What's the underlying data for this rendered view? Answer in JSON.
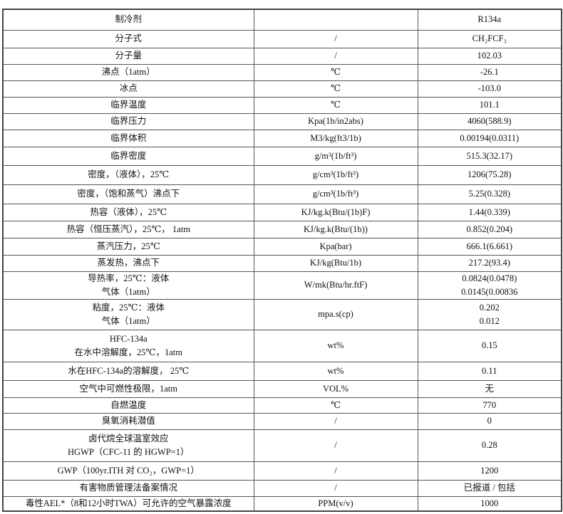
{
  "rows": [
    {
      "property": "制冷剂",
      "unit": "",
      "value": "R134a"
    },
    {
      "property": "分子式",
      "unit": "/",
      "value": "CH₂FCF₃"
    },
    {
      "property": "分子量",
      "unit": "/",
      "value": "102.03"
    },
    {
      "property": "沸点（1atm）",
      "unit": "℃",
      "value": "-26.1"
    },
    {
      "property": "冰点",
      "unit": "℃",
      "value": "-103.0"
    },
    {
      "property": "临界温度",
      "unit": "℃",
      "value": "101.1"
    },
    {
      "property": "临界压力",
      "unit": "Kpa(1b/in2abs)",
      "value": "4060(588.9)"
    },
    {
      "property": "临界体积",
      "unit": "M3/kg(ft3/1b)",
      "value": "0.00194(0.0311)"
    },
    {
      "property": "临界密度",
      "unit": "g/m³(1b/ft³)",
      "value": "515.3(32.17)"
    },
    {
      "property": "密度，（液体），25℃",
      "unit": "g/cm³(1b/ft³)",
      "value": "1206(75.28)"
    },
    {
      "property": "密度，（饱和蒸气）沸点下",
      "unit": "g/cm³(1b/ft³)",
      "value": "5.25(0.328)"
    },
    {
      "property": "热容（液体），25℃",
      "unit": "KJ/kg.k(Btu/(1b)F)",
      "value": "1.44(0.339)"
    },
    {
      "property": "热容（恒压蒸汽），25℃， 1atm",
      "unit": "KJ/kg.k(Btu/(1b))",
      "value": "0.852(0.204)"
    },
    {
      "property": "蒸汽压力，25℃",
      "unit": "Kpa(bar)",
      "value": "666.1(6.661)"
    },
    {
      "property": "蒸发热，沸点下",
      "unit": "KJ/kg(Btu/1b)",
      "value": "217.2(93.4)"
    },
    {
      "property": "导热率，25℃：液体\n气体（1atm）",
      "unit": "W/mk(Btu/hr.ftF)",
      "value": "0.0824(0.0478)\n0.0145(0.00836"
    },
    {
      "property": "粘度，25℃：液体\n气体（1atm）",
      "unit": "mpa.s(cp)",
      "value": "0.202\n0.012"
    },
    {
      "property": "HFC-134a\n在水中溶解度，25℃，1atm",
      "unit": "wt%",
      "value": "0.15"
    },
    {
      "property": "水在HFC-134a的溶解度， 25℃",
      "unit": "wt%",
      "value": "0.11"
    },
    {
      "property": "空气中可燃性极限，1atm",
      "unit": "VOL%",
      "value": "无"
    },
    {
      "property": "自燃温度",
      "unit": "℃",
      "value": "770"
    },
    {
      "property": "臭氧消耗潜值",
      "unit": "/",
      "value": "0"
    },
    {
      "property": "卤代烷全球温室效应\nHGWP（CFC-11 的 HGWP=1）",
      "unit": "/",
      "value": "0.28"
    },
    {
      "property": "GWP（100yr.ITH 对 CO₂，GWP=1）",
      "unit": "/",
      "value": "1200"
    },
    {
      "property": "有害物质管理法备案情况",
      "unit": "/",
      "value": "已报道 / 包括"
    },
    {
      "property": "毒性AEL*（8和12小时TWA）可允许的空气暴露浓度",
      "unit": "PPM(v/v)",
      "value": "1000"
    }
  ]
}
